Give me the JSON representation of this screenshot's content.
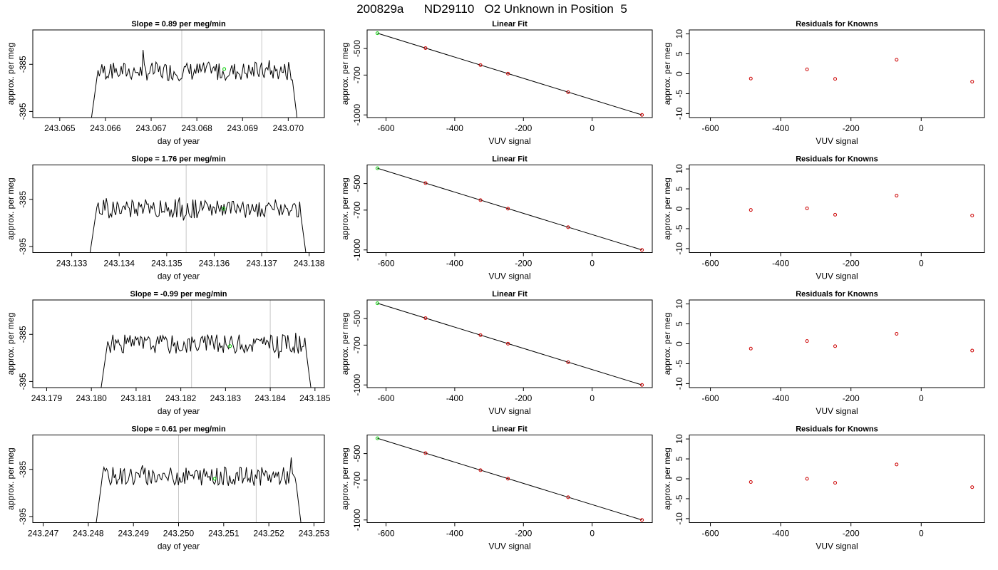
{
  "figure": {
    "title": "200829a      ND29110   O2 Unknown in Position  5"
  },
  "colors": {
    "trace": "#000000",
    "frame": "#000000",
    "vline": "#c8c8c8",
    "unknown_point": "#00cc00",
    "known_point": "#cc0000"
  },
  "chart_data": [
    {
      "type": "line",
      "row": 0,
      "panel": "timeseries",
      "title": "Slope =  0.89  per meg/min",
      "xlabel": "day of year",
      "ylabel": "approx. per meg",
      "xlim": [
        243.06441,
        243.07079
      ],
      "ylim": [
        -396.3,
        -377.7
      ],
      "xticks": [
        243.065,
        243.066,
        243.067,
        243.068,
        243.069,
        243.07
      ],
      "xtick_labels": [
        "243.065",
        "243.066",
        "243.067",
        "243.068",
        "243.069",
        "243.070"
      ],
      "yticks": [
        -395,
        -385
      ],
      "ytick_labels": [
        "-395",
        "-385"
      ],
      "vlines": [
        243.06767,
        243.06942
      ],
      "trace_start": 243.06565,
      "trace_end": 243.07025,
      "trace_mean": -386.5,
      "trace_amp": 2.0,
      "seed": 7,
      "highlight": {
        "x": 243.0686,
        "y": -386.0
      }
    },
    {
      "type": "line",
      "row": 1,
      "panel": "timeseries",
      "title": "Slope =  1.76  per meg/min",
      "xlabel": "day of year",
      "ylabel": "approx. per meg",
      "xlim": [
        243.13218,
        243.13832
      ],
      "ylim": [
        -396.3,
        -377.7
      ],
      "xticks": [
        243.133,
        243.134,
        243.135,
        243.136,
        243.137,
        243.138
      ],
      "xtick_labels": [
        "243.133",
        "243.134",
        "243.135",
        "243.136",
        "243.137",
        "243.138"
      ],
      "yticks": [
        -395,
        -385
      ],
      "ytick_labels": [
        "-395",
        "-385"
      ],
      "vlines": [
        243.13541,
        243.13711
      ],
      "trace_start": 243.13334,
      "trace_end": 243.13799,
      "trace_mean": -387.0,
      "trace_amp": 2.0,
      "seed": 19,
      "highlight": {
        "x": 243.1362,
        "y": -387.0
      }
    },
    {
      "type": "line",
      "row": 2,
      "panel": "timeseries",
      "title": "Slope =  -0.99  per meg/min",
      "xlabel": "day of year",
      "ylabel": "approx. per meg",
      "xlim": [
        243.17869,
        243.18521
      ],
      "ylim": [
        -396.3,
        -377.7
      ],
      "xticks": [
        243.179,
        243.18,
        243.181,
        243.182,
        243.183,
        243.184,
        243.185
      ],
      "xtick_labels": [
        "243.179",
        "243.180",
        "243.181",
        "243.182",
        "243.183",
        "243.184",
        "243.185"
      ],
      "yticks": [
        -395,
        -385
      ],
      "ytick_labels": [
        "-395",
        "-385"
      ],
      "vlines": [
        243.18224,
        243.184
      ],
      "trace_start": 243.18017,
      "trace_end": 243.18497,
      "trace_mean": -387.0,
      "trace_amp": 2.0,
      "seed": 31,
      "highlight": {
        "x": 243.1831,
        "y": -387.5
      }
    },
    {
      "type": "line",
      "row": 3,
      "panel": "timeseries",
      "title": "Slope =  0.61  per meg/min",
      "xlabel": "day of year",
      "ylabel": "approx. per meg",
      "xlim": [
        243.24677,
        243.25323
      ],
      "ylim": [
        -396.3,
        -377.7
      ],
      "xticks": [
        243.247,
        243.248,
        243.249,
        243.25,
        243.251,
        243.252,
        243.253
      ],
      "xtick_labels": [
        "243.247",
        "243.248",
        "243.249",
        "243.250",
        "243.251",
        "243.252",
        "243.253"
      ],
      "yticks": [
        -395,
        -385
      ],
      "ytick_labels": [
        "-395",
        "-385"
      ],
      "vlines": [
        243.25,
        243.25172
      ],
      "trace_start": 243.24813,
      "trace_end": 243.25277,
      "trace_mean": -386.5,
      "trace_amp": 2.0,
      "seed": 43,
      "highlight": {
        "x": 243.2508,
        "y": -387.0
      }
    },
    {
      "type": "scatter",
      "row": 0,
      "panel": "fit",
      "title": "Linear Fit",
      "xlabel": "VUV signal",
      "ylabel": "approx. per meg",
      "xlim": [
        -655,
        175
      ],
      "ylim": [
        -1020,
        -360
      ],
      "xticks": [
        -600,
        -400,
        -200,
        0
      ],
      "xtick_labels": [
        "-600",
        "-400",
        "-200",
        "0"
      ],
      "yticks": [
        -1000,
        -700,
        -500
      ],
      "ytick_labels": [
        "-1000",
        "-700",
        "-500"
      ],
      "line": [
        [
          -625,
          -385
        ],
        [
          145,
          -1000
        ]
      ],
      "knowns": [
        [
          -485,
          -497
        ],
        [
          -325,
          -625
        ],
        [
          -245,
          -689
        ],
        [
          -70,
          -829
        ],
        [
          145,
          -1000
        ]
      ],
      "unknown": [
        -625,
        -385
      ]
    },
    {
      "type": "scatter",
      "row": 1,
      "panel": "fit",
      "title": "Linear Fit",
      "xlabel": "VUV signal",
      "ylabel": "approx. per meg",
      "xlim": [
        -655,
        175
      ],
      "ylim": [
        -1020,
        -360
      ],
      "xticks": [
        -600,
        -400,
        -200,
        0
      ],
      "xtick_labels": [
        "-600",
        "-400",
        "-200",
        "0"
      ],
      "yticks": [
        -1000,
        -700,
        -500
      ],
      "ytick_labels": [
        "-1000",
        "-700",
        "-500"
      ],
      "line": [
        [
          -625,
          -385
        ],
        [
          145,
          -1000
        ]
      ],
      "knowns": [
        [
          -485,
          -497
        ],
        [
          -325,
          -625
        ],
        [
          -245,
          -689
        ],
        [
          -70,
          -829
        ],
        [
          145,
          -1000
        ]
      ],
      "unknown": [
        -625,
        -385
      ]
    },
    {
      "type": "scatter",
      "row": 2,
      "panel": "fit",
      "title": "Linear Fit",
      "xlabel": "VUV signal",
      "ylabel": "approx. per meg",
      "xlim": [
        -655,
        175
      ],
      "ylim": [
        -1020,
        -360
      ],
      "xticks": [
        -600,
        -400,
        -200,
        0
      ],
      "xtick_labels": [
        "-600",
        "-400",
        "-200",
        "0"
      ],
      "yticks": [
        -1000,
        -700,
        -500
      ],
      "ytick_labels": [
        "-1000",
        "-700",
        "-500"
      ],
      "line": [
        [
          -625,
          -385
        ],
        [
          145,
          -1000
        ]
      ],
      "knowns": [
        [
          -485,
          -497
        ],
        [
          -325,
          -625
        ],
        [
          -245,
          -689
        ],
        [
          -70,
          -829
        ],
        [
          145,
          -1000
        ]
      ],
      "unknown": [
        -625,
        -385
      ]
    },
    {
      "type": "scatter",
      "row": 3,
      "panel": "fit",
      "title": "Linear Fit",
      "xlabel": "VUV signal",
      "ylabel": "approx. per meg",
      "xlim": [
        -655,
        175
      ],
      "ylim": [
        -1020,
        -360
      ],
      "xticks": [
        -600,
        -400,
        -200,
        0
      ],
      "xtick_labels": [
        "-600",
        "-400",
        "-200",
        "0"
      ],
      "yticks": [
        -1000,
        -700,
        -500
      ],
      "ytick_labels": [
        "-1000",
        "-700",
        "-500"
      ],
      "line": [
        [
          -625,
          -385
        ],
        [
          145,
          -1000
        ]
      ],
      "knowns": [
        [
          -485,
          -497
        ],
        [
          -325,
          -625
        ],
        [
          -245,
          -689
        ],
        [
          -70,
          -829
        ],
        [
          145,
          -1000
        ]
      ],
      "unknown": [
        -625,
        -385
      ]
    },
    {
      "type": "scatter",
      "row": 0,
      "panel": "residuals",
      "title": "Residuals for Knowns",
      "xlabel": "VUV signal",
      "ylabel": "approx. per meg",
      "xlim": [
        -660,
        180
      ],
      "ylim": [
        -11,
        11
      ],
      "xticks": [
        -600,
        -400,
        -200,
        0
      ],
      "xtick_labels": [
        "-600",
        "-400",
        "-200",
        "0"
      ],
      "yticks": [
        -10,
        -5,
        0,
        5,
        10
      ],
      "ytick_labels": [
        "-10",
        "-5",
        "0",
        "5",
        "10"
      ],
      "x": [
        -485,
        -325,
        -245,
        -70,
        145
      ],
      "y": [
        -1.2,
        1.1,
        -1.3,
        3.5,
        -2.0
      ]
    },
    {
      "type": "scatter",
      "row": 1,
      "panel": "residuals",
      "title": "Residuals for Knowns",
      "xlabel": "VUV signal",
      "ylabel": "approx. per meg",
      "xlim": [
        -660,
        180
      ],
      "ylim": [
        -11,
        11
      ],
      "xticks": [
        -600,
        -400,
        -200,
        0
      ],
      "xtick_labels": [
        "-600",
        "-400",
        "-200",
        "0"
      ],
      "yticks": [
        -10,
        -5,
        0,
        5,
        10
      ],
      "ytick_labels": [
        "-10",
        "-5",
        "0",
        "5",
        "10"
      ],
      "x": [
        -485,
        -325,
        -245,
        -70,
        145
      ],
      "y": [
        -0.3,
        0.1,
        -1.5,
        3.3,
        -1.7
      ]
    },
    {
      "type": "scatter",
      "row": 2,
      "panel": "residuals",
      "title": "Residuals for Knowns",
      "xlabel": "VUV signal",
      "ylabel": "approx. per meg",
      "xlim": [
        -660,
        180
      ],
      "ylim": [
        -11,
        11
      ],
      "xticks": [
        -600,
        -400,
        -200,
        0
      ],
      "xtick_labels": [
        "-600",
        "-400",
        "-200",
        "0"
      ],
      "yticks": [
        -10,
        -5,
        0,
        5,
        10
      ],
      "ytick_labels": [
        "-10",
        "-5",
        "0",
        "5",
        "10"
      ],
      "x": [
        -485,
        -325,
        -245,
        -70,
        145
      ],
      "y": [
        -1.2,
        0.7,
        -0.6,
        2.5,
        -1.7
      ]
    },
    {
      "type": "scatter",
      "row": 3,
      "panel": "residuals",
      "title": "Residuals for Knowns",
      "xlabel": "VUV signal",
      "ylabel": "approx. per meg",
      "xlim": [
        -660,
        180
      ],
      "ylim": [
        -11,
        11
      ],
      "xticks": [
        -600,
        -400,
        -200,
        0
      ],
      "xtick_labels": [
        "-600",
        "-400",
        "-200",
        "0"
      ],
      "yticks": [
        -10,
        -5,
        0,
        5,
        10
      ],
      "ytick_labels": [
        "-10",
        "-5",
        "0",
        "5",
        "10"
      ],
      "x": [
        -485,
        -325,
        -245,
        -70,
        145
      ],
      "y": [
        -0.8,
        0.0,
        -1.0,
        3.6,
        -2.1
      ]
    }
  ]
}
